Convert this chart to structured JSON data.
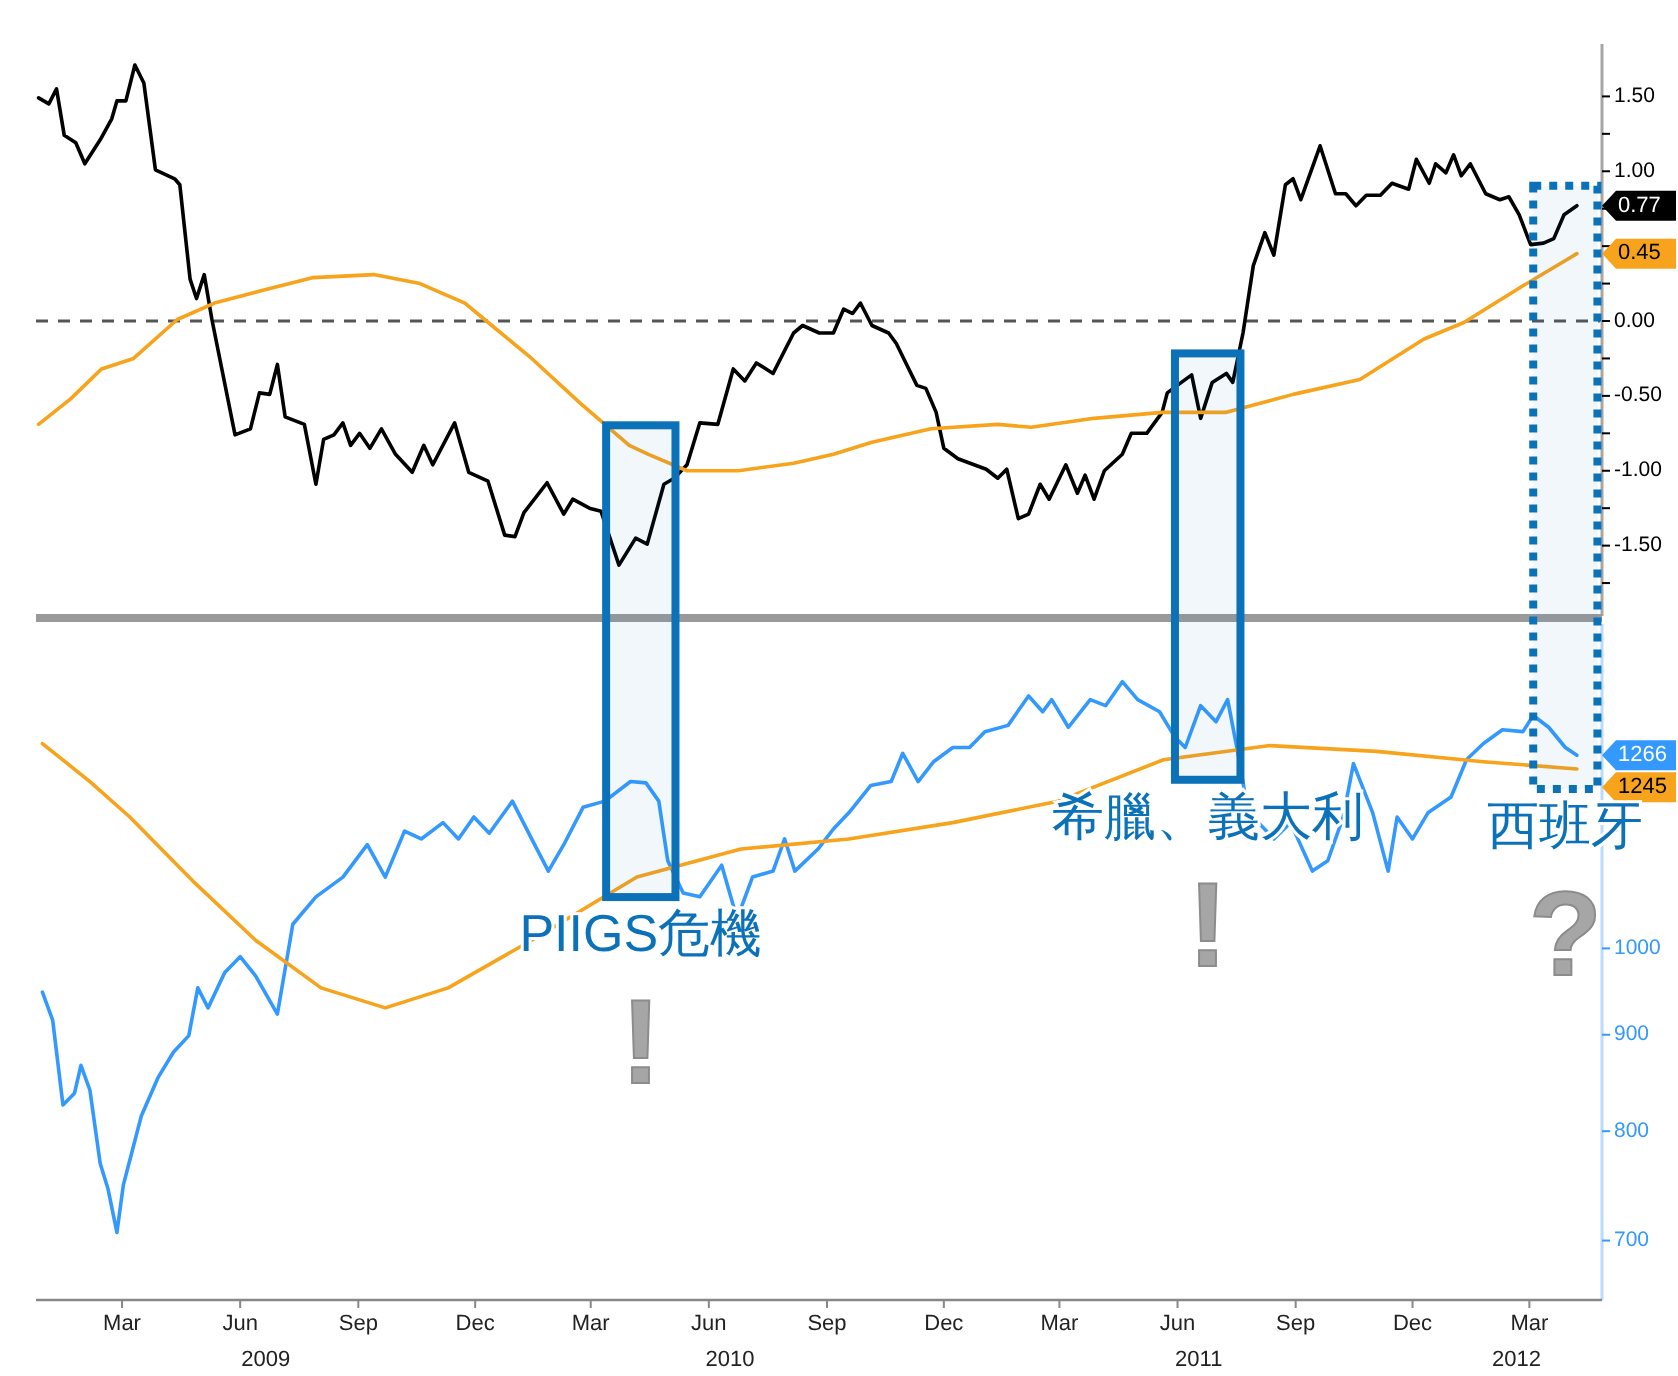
{
  "chart_data": [
    {
      "type": "line",
      "xlim": [
        "2009-01-08",
        "2012-05-10"
      ],
      "ylim": [
        -1.97,
        1.85
      ],
      "tick_labels": "y",
      "yticks": [
        {
          "value": 1.5,
          "label": "1.50"
        },
        {
          "value": 1.25,
          "label": null
        },
        {
          "value": 1.0,
          "label": "1.00"
        },
        {
          "value": 0.75,
          "label": null
        },
        {
          "value": 0.5,
          "label": null
        },
        {
          "value": 0.25,
          "label": null
        },
        {
          "value": 0,
          "label": "0.00"
        },
        {
          "value": -0.25,
          "label": null
        },
        {
          "value": -0.5,
          "label": "-0.50"
        },
        {
          "value": -0.75,
          "label": null
        },
        {
          "value": -1.0,
          "label": "-1.00"
        },
        {
          "value": -1.25,
          "label": null
        },
        {
          "value": -1.5,
          "label": "-1.50"
        },
        {
          "value": -1.75,
          "label": null
        }
      ],
      "ref_lines": [
        {
          "axis": "y",
          "value": 0,
          "color": "#555555",
          "line_style": "dashed"
        }
      ],
      "series": [
        {
          "color": "#000000",
          "x": [
            "2009-01-10",
            "2009-01-18",
            "2009-01-24",
            "2009-01-30",
            "2009-02-08",
            "2009-02-15",
            "2009-02-27",
            "2009-03-08",
            "2009-03-12",
            "2009-03-19",
            "2009-03-26",
            "2009-04-02",
            "2009-04-11",
            "2009-04-26",
            "2009-04-30",
            "2009-05-08",
            "2009-05-13",
            "2009-05-19",
            "2009-05-25",
            "2009-06-12",
            "2009-06-24",
            "2009-07-01",
            "2009-07-09",
            "2009-07-15",
            "2009-07-21",
            "2009-08-05",
            "2009-08-14",
            "2009-08-20",
            "2009-08-28",
            "2009-09-04",
            "2009-09-10",
            "2009-09-17",
            "2009-09-25",
            "2009-10-04",
            "2009-10-15",
            "2009-10-28",
            "2009-11-06",
            "2009-11-13",
            "2009-11-30",
            "2009-12-11",
            "2009-12-26",
            "2010-01-08",
            "2010-01-16",
            "2010-01-23",
            "2010-02-10",
            "2010-02-23",
            "2010-03-02",
            "2010-03-15",
            "2010-03-24",
            "2010-04-07",
            "2010-04-20",
            "2010-04-29",
            "2010-05-12",
            "2010-05-20",
            "2010-05-30",
            "2010-06-09",
            "2010-06-23",
            "2010-07-05",
            "2010-07-14",
            "2010-07-23",
            "2010-08-05",
            "2010-08-21",
            "2010-08-28",
            "2010-09-10",
            "2010-09-21",
            "2010-09-29",
            "2010-10-06",
            "2010-10-12",
            "2010-10-21",
            "2010-11-03",
            "2010-11-09",
            "2010-11-17",
            "2010-11-25",
            "2010-12-02",
            "2010-12-10",
            "2010-12-16",
            "2010-12-27",
            "2011-01-18",
            "2011-01-27",
            "2011-02-03",
            "2011-02-12",
            "2011-02-20",
            "2011-03-01",
            "2011-03-08",
            "2011-03-21",
            "2011-03-30",
            "2011-04-05",
            "2011-04-12",
            "2011-04-20",
            "2011-05-04",
            "2011-05-11",
            "2011-05-23",
            "2011-06-04",
            "2011-06-08",
            "2011-06-19",
            "2011-06-27",
            "2011-07-04",
            "2011-07-13",
            "2011-07-24",
            "2011-07-29",
            "2011-08-06",
            "2011-08-14",
            "2011-08-23",
            "2011-08-30",
            "2011-09-08",
            "2011-09-14",
            "2011-09-20",
            "2011-10-05",
            "2011-10-17",
            "2011-10-25",
            "2011-11-02",
            "2011-11-10",
            "2011-11-21",
            "2011-11-30",
            "2011-12-13",
            "2011-12-19",
            "2011-12-29",
            "2012-01-03",
            "2012-01-11",
            "2012-01-17",
            "2012-01-23",
            "2012-01-30",
            "2012-02-11",
            "2012-02-22",
            "2012-02-29",
            "2012-03-08",
            "2012-03-17",
            "2012-03-27",
            "2012-04-04",
            "2012-04-12",
            "2012-04-22"
          ],
          "values": [
            1.49,
            1.45,
            1.55,
            1.24,
            1.19,
            1.05,
            1.21,
            1.35,
            1.47,
            1.47,
            1.71,
            1.59,
            1.01,
            0.95,
            0.91,
            0.28,
            0.15,
            0.31,
            0.01,
            -0.76,
            -0.72,
            -0.48,
            -0.49,
            -0.29,
            -0.64,
            -0.69,
            -1.09,
            -0.79,
            -0.76,
            -0.68,
            -0.83,
            -0.75,
            -0.85,
            -0.72,
            -0.89,
            -1.01,
            -0.83,
            -0.96,
            -0.68,
            -1.01,
            -1.07,
            -1.43,
            -1.44,
            -1.28,
            -1.08,
            -1.29,
            -1.19,
            -1.25,
            -1.27,
            -1.63,
            -1.45,
            -1.49,
            -1.09,
            -1.05,
            -0.96,
            -0.68,
            -0.69,
            -0.32,
            -0.4,
            -0.28,
            -0.35,
            -0.08,
            -0.03,
            -0.08,
            -0.08,
            0.08,
            0.05,
            0.12,
            -0.03,
            -0.08,
            -0.15,
            -0.29,
            -0.43,
            -0.45,
            -0.61,
            -0.85,
            -0.92,
            -0.99,
            -1.05,
            -0.99,
            -1.32,
            -1.29,
            -1.09,
            -1.19,
            -0.96,
            -1.15,
            -1.03,
            -1.19,
            -1.0,
            -0.89,
            -0.75,
            -0.75,
            -0.61,
            -0.48,
            -0.41,
            -0.36,
            -0.65,
            -0.41,
            -0.35,
            -0.41,
            -0.08,
            0.37,
            0.59,
            0.44,
            0.91,
            0.95,
            0.81,
            1.17,
            0.85,
            0.85,
            0.77,
            0.84,
            0.84,
            0.92,
            0.88,
            1.08,
            0.92,
            1.05,
            0.99,
            1.11,
            0.97,
            1.05,
            0.85,
            0.81,
            0.83,
            0.71,
            0.51,
            0.52,
            0.55,
            0.71,
            0.77
          ],
          "value_labels": [
            null,
            null,
            null,
            null,
            null,
            null,
            null,
            null,
            null,
            null,
            null,
            null,
            null,
            null,
            null,
            null,
            null,
            null,
            null,
            null,
            null,
            null,
            null,
            null,
            null,
            null,
            null,
            null,
            null,
            null,
            null,
            null,
            null,
            null,
            null,
            null,
            null,
            null,
            null,
            null,
            null,
            null,
            null,
            null,
            null,
            null,
            null,
            null,
            null,
            null,
            null,
            null,
            null,
            null,
            null,
            null,
            null,
            null,
            null,
            null,
            null,
            null,
            null,
            null,
            null,
            null,
            null,
            null,
            null,
            null,
            null,
            null,
            null,
            null,
            null,
            null,
            null,
            null,
            null,
            null,
            null,
            null,
            null,
            null,
            null,
            null,
            null,
            null,
            null,
            null,
            null,
            null,
            null,
            null,
            null,
            null,
            null,
            null,
            null,
            null,
            null,
            null,
            null,
            null,
            null,
            null,
            null,
            null,
            null,
            null,
            null,
            null,
            null,
            null,
            null,
            null,
            null,
            null,
            null,
            null,
            null,
            null,
            null,
            null,
            null,
            null,
            null,
            null,
            null,
            null,
            "0.77"
          ]
        },
        {
          "color": "#f7a31c",
          "x": [
            "2009-01-10",
            "2009-02-04",
            "2009-02-28",
            "2009-03-25",
            "2009-04-28",
            "2009-05-27",
            "2009-07-06",
            "2009-08-12",
            "2009-09-28",
            "2009-11-03",
            "2009-12-08",
            "2009-12-29",
            "2010-01-29",
            "2010-03-08",
            "2010-04-15",
            "2010-04-30",
            "2010-05-30",
            "2010-07-09",
            "2010-08-21",
            "2010-09-21",
            "2010-10-21",
            "2010-12-06",
            "2011-01-27",
            "2011-02-22",
            "2011-04-12",
            "2011-06-04",
            "2011-07-24",
            "2011-09-14",
            "2011-11-05",
            "2011-12-25",
            "2012-01-25",
            "2012-03-12",
            "2012-04-22"
          ],
          "values": [
            -0.69,
            -0.52,
            -0.32,
            -0.25,
            0.01,
            0.12,
            0.21,
            0.29,
            0.31,
            0.25,
            0.12,
            -0.03,
            -0.25,
            -0.55,
            -0.83,
            -0.89,
            -1.0,
            -1.0,
            -0.95,
            -0.89,
            -0.81,
            -0.72,
            -0.69,
            -0.71,
            -0.65,
            -0.61,
            -0.61,
            -0.49,
            -0.39,
            -0.12,
            -0.01,
            0.24,
            0.45
          ],
          "value_labels": [
            null,
            null,
            null,
            null,
            null,
            null,
            null,
            null,
            null,
            null,
            null,
            null,
            null,
            null,
            null,
            null,
            null,
            null,
            null,
            null,
            null,
            null,
            null,
            null,
            null,
            null,
            null,
            null,
            null,
            null,
            null,
            null,
            "0.45"
          ]
        }
      ]
    },
    {
      "type": "line",
      "xlim": [
        "2009-01-08",
        "2012-05-10"
      ],
      "ylim": [
        651,
        1486
      ],
      "log": "y",
      "yticks": [
        700,
        800,
        900,
        1000
      ],
      "xticks": [
        {
          "value": "2009-03-16",
          "label": "Mar"
        },
        {
          "value": "2009-06-16",
          "label": "Jun"
        },
        {
          "value": "2009-09-16",
          "label": "Sep"
        },
        {
          "value": "2009-12-16",
          "label": "Dec"
        },
        {
          "value": "2010-03-16",
          "label": "Mar"
        },
        {
          "value": "2010-06-16",
          "label": "Jun"
        },
        {
          "value": "2010-09-16",
          "label": "Sep"
        },
        {
          "value": "2010-12-16",
          "label": "Dec"
        },
        {
          "value": "2011-03-16",
          "label": "Mar"
        },
        {
          "value": "2011-06-16",
          "label": "Jun"
        },
        {
          "value": "2011-09-16",
          "label": "Sep"
        },
        {
          "value": "2011-12-16",
          "label": "Dec"
        },
        {
          "value": "2012-03-16",
          "label": "Mar"
        }
      ],
      "series": [
        {
          "color": "#3399ff",
          "x": [
            "2009-01-13",
            "2009-01-21",
            "2009-01-29",
            "2009-02-07",
            "2009-02-12",
            "2009-02-19",
            "2009-02-27",
            "2009-03-05",
            "2009-03-12",
            "2009-03-17",
            "2009-03-31",
            "2009-04-13",
            "2009-04-25",
            "2009-05-07",
            "2009-05-14",
            "2009-05-22",
            "2009-06-04",
            "2009-06-16",
            "2009-06-28",
            "2009-07-15",
            "2009-07-27",
            "2009-08-14",
            "2009-09-04",
            "2009-09-23",
            "2009-10-07",
            "2009-10-22",
            "2009-11-04",
            "2009-11-21",
            "2009-12-03",
            "2009-12-15",
            "2009-12-27",
            "2010-01-14",
            "2010-01-29",
            "2010-02-11",
            "2010-02-23",
            "2010-03-10",
            "2010-03-27",
            "2010-04-16",
            "2010-04-28",
            "2010-05-08",
            "2010-05-15",
            "2010-05-27",
            "2010-06-09",
            "2010-06-26",
            "2010-07-08",
            "2010-07-20",
            "2010-08-05",
            "2010-08-14",
            "2010-08-22",
            "2010-09-09",
            "2010-09-21",
            "2010-10-03",
            "2010-10-20",
            "2010-11-05",
            "2010-11-14",
            "2010-11-26",
            "2010-12-08",
            "2010-12-23",
            "2011-01-05",
            "2011-01-17",
            "2011-02-04",
            "2011-02-20",
            "2011-03-03",
            "2011-03-10",
            "2011-03-23",
            "2011-04-09",
            "2011-04-21",
            "2011-05-04",
            "2011-05-16",
            "2011-06-02",
            "2011-06-14",
            "2011-06-22",
            "2011-07-04",
            "2011-07-16",
            "2011-07-25",
            "2011-08-03",
            "2011-08-10",
            "2011-08-18",
            "2011-08-30",
            "2011-09-12",
            "2011-09-29",
            "2011-10-11",
            "2011-10-23",
            "2011-10-31",
            "2011-11-15",
            "2011-11-27",
            "2011-12-04",
            "2011-12-16",
            "2011-12-28",
            "2012-01-15",
            "2012-01-27",
            "2012-02-09",
            "2012-02-24",
            "2012-03-11",
            "2012-03-19",
            "2012-03-31",
            "2012-04-13",
            "2012-04-22"
          ],
          "values": [
            948,
            916,
            826,
            838,
            867,
            841,
            769,
            746,
            707,
            749,
            815,
            854,
            881,
            899,
            953,
            930,
            971,
            990,
            967,
            923,
            1030,
            1065,
            1091,
            1135,
            1091,
            1154,
            1143,
            1166,
            1143,
            1174,
            1151,
            1197,
            1143,
            1099,
            1135,
            1188,
            1197,
            1226,
            1224,
            1197,
            1113,
            1070,
            1065,
            1107,
            1037,
            1091,
            1099,
            1143,
            1099,
            1129,
            1157,
            1180,
            1220,
            1226,
            1269,
            1226,
            1256,
            1278,
            1278,
            1303,
            1313,
            1361,
            1335,
            1355,
            1310,
            1355,
            1345,
            1385,
            1355,
            1335,
            1294,
            1278,
            1345,
            1319,
            1355,
            1259,
            1180,
            1166,
            1143,
            1166,
            1099,
            1113,
            1174,
            1253,
            1180,
            1099,
            1174,
            1143,
            1180,
            1203,
            1259,
            1284,
            1306,
            1303,
            1329,
            1310,
            1278,
            1266
          ],
          "value_labels": [
            null,
            null,
            null,
            null,
            null,
            null,
            null,
            null,
            null,
            null,
            null,
            null,
            null,
            null,
            null,
            null,
            null,
            null,
            null,
            null,
            null,
            null,
            null,
            null,
            null,
            null,
            null,
            null,
            null,
            null,
            null,
            null,
            null,
            null,
            null,
            null,
            null,
            null,
            null,
            null,
            null,
            null,
            null,
            null,
            null,
            null,
            null,
            null,
            null,
            null,
            null,
            null,
            null,
            null,
            null,
            null,
            null,
            null,
            null,
            null,
            null,
            null,
            null,
            null,
            null,
            null,
            null,
            null,
            null,
            null,
            null,
            null,
            null,
            null,
            null,
            null,
            null,
            null,
            null,
            null,
            null,
            null,
            null,
            null,
            null,
            null,
            null,
            null,
            null,
            null,
            null,
            null,
            null,
            null,
            null,
            null,
            null,
            "1266"
          ]
        },
        {
          "color": "#f7a31c",
          "x": [
            "2009-01-13",
            "2009-02-19",
            "2009-03-22",
            "2009-05-10",
            "2009-06-28",
            "2009-08-18",
            "2009-10-07",
            "2009-11-25",
            "2010-01-29",
            "2010-04-21",
            "2010-07-11",
            "2010-10-03",
            "2010-12-23",
            "2011-03-15",
            "2011-06-05",
            "2011-08-27",
            "2011-11-18",
            "2012-02-09",
            "2012-04-22"
          ],
          "values": [
            1284,
            1226,
            1174,
            1086,
            1010,
            953,
            930,
            953,
            1010,
            1091,
            1129,
            1143,
            1166,
            1197,
            1259,
            1281,
            1272,
            1256,
            1245
          ],
          "value_labels": [
            null,
            null,
            null,
            null,
            null,
            null,
            null,
            null,
            null,
            null,
            null,
            null,
            null,
            null,
            null,
            null,
            null,
            null,
            "1245"
          ]
        }
      ],
      "bands": [
        {
          "axis": "x",
          "from": "2010-03-28",
          "to": "2010-05-21",
          "label": "PIIGS危機",
          "color": "#0b72b9"
        },
        {
          "axis": "x",
          "from": "2011-06-14",
          "to": "2011-08-04",
          "label": "希臘、義大利",
          "color": "#0b72b9"
        },
        {
          "axis": "x",
          "from": "2012-03-19",
          "to": "2012-05-08",
          "label": "西班牙",
          "color": "#0b72b9"
        }
      ],
      "annotations": [
        "!",
        "!",
        "?",
        "2009",
        "2010",
        "2011",
        "2012"
      ]
    }
  ]
}
